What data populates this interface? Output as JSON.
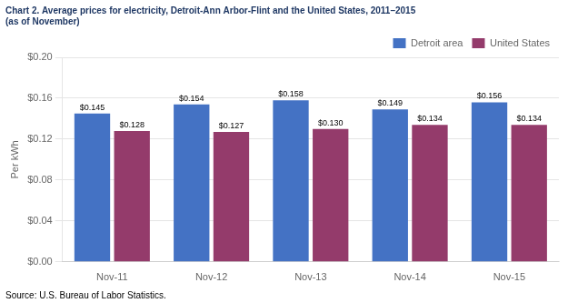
{
  "chart_data": {
    "type": "bar",
    "title": "Chart 2. Average prices for electricity, Detroit-Ann Arbor-Flint and the United States, 2011–2015",
    "subtitle": "(as of November)",
    "ylabel": "Per kWh",
    "source": "Source: U.S. Bureau of Labor Statistics.",
    "categories": [
      "Nov-11",
      "Nov-12",
      "Nov-13",
      "Nov-14",
      "Nov-15"
    ],
    "series": [
      {
        "name": "Detroit area",
        "color": "#4472C4",
        "values": [
          0.145,
          0.154,
          0.158,
          0.149,
          0.156
        ],
        "value_labels": [
          "$0.145",
          "$0.154",
          "$0.158",
          "$0.149",
          "$0.156"
        ]
      },
      {
        "name": "United States",
        "color": "#943B6B",
        "values": [
          0.128,
          0.127,
          0.13,
          0.134,
          0.134
        ],
        "value_labels": [
          "$0.128",
          "$0.127",
          "$0.130",
          "$0.134",
          "$0.134"
        ]
      }
    ],
    "ylim": [
      0,
      0.2
    ],
    "yticks": [
      {
        "value": 0.0,
        "label": "$0.00"
      },
      {
        "value": 0.04,
        "label": "$0.04"
      },
      {
        "value": 0.08,
        "label": "$0.08"
      },
      {
        "value": 0.12,
        "label": "$0.12"
      },
      {
        "value": 0.16,
        "label": "$0.16"
      },
      {
        "value": 0.2,
        "label": "$0.20"
      }
    ],
    "grid": true,
    "legend": "top",
    "data_labels": true
  }
}
